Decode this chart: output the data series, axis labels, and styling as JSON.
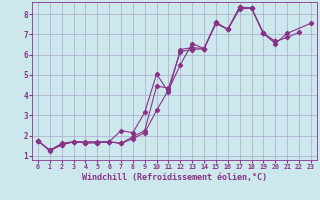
{
  "background_color": "#cce8ec",
  "grid_color": "#aaaacc",
  "line_color": "#883388",
  "marker": "D",
  "markersize": 2.2,
  "linewidth": 0.8,
  "xlim": [
    -0.5,
    23.5
  ],
  "ylim": [
    0.8,
    8.6
  ],
  "xlabel": "Windchill (Refroidissement éolien,°C)",
  "xlabel_fontsize": 6.0,
  "xtick_fontsize": 4.8,
  "ytick_fontsize": 5.5,
  "yticks": [
    1,
    2,
    3,
    4,
    5,
    6,
    7,
    8
  ],
  "xticks": [
    0,
    1,
    2,
    3,
    4,
    5,
    6,
    7,
    8,
    9,
    10,
    11,
    12,
    13,
    14,
    15,
    16,
    17,
    18,
    19,
    20,
    21,
    22,
    23
  ],
  "series": [
    [
      1.75,
      1.25,
      1.55,
      1.7,
      1.65,
      1.65,
      1.7,
      1.62,
      1.85,
      2.15,
      3.25,
      4.25,
      5.5,
      6.55,
      6.3,
      7.55,
      7.25,
      8.35,
      8.3,
      7.05,
      6.65,
      6.85,
      7.1,
      null
    ],
    [
      1.75,
      1.28,
      1.55,
      1.7,
      1.65,
      1.65,
      1.7,
      1.62,
      1.95,
      2.25,
      4.45,
      4.35,
      6.15,
      6.25,
      6.3,
      7.55,
      7.25,
      8.35,
      8.3,
      7.05,
      6.55,
      7.05,
      null,
      7.55
    ],
    [
      1.75,
      1.28,
      1.62,
      1.7,
      1.7,
      1.7,
      1.7,
      2.25,
      2.15,
      3.15,
      5.05,
      4.15,
      6.25,
      6.35,
      6.3,
      7.6,
      7.25,
      8.25,
      8.3,
      7.05,
      6.65,
      null,
      null,
      null
    ]
  ]
}
